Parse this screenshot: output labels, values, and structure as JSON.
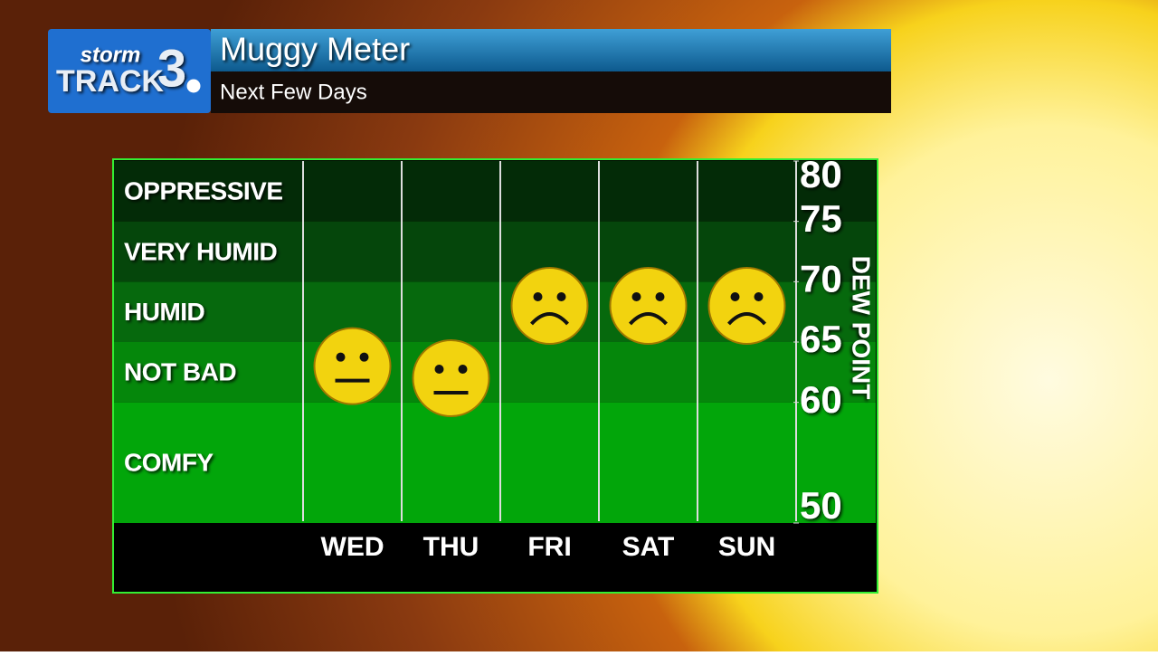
{
  "header": {
    "logo_top": "storm",
    "logo_main": "TRACK",
    "logo_number": "3",
    "title": "Muggy Meter",
    "subtitle": "Next Few Days"
  },
  "chart_data": {
    "type": "face-meter",
    "y_axis_label": "DEW POINT",
    "categories": [
      "WED",
      "THU",
      "FRI",
      "SAT",
      "SUN"
    ],
    "values": [
      63,
      62,
      68,
      68,
      68
    ],
    "faces": [
      "neutral",
      "neutral",
      "sad",
      "sad",
      "sad"
    ],
    "ylim": [
      50,
      80
    ],
    "yticks": [
      50,
      60,
      65,
      70,
      75,
      80
    ],
    "bands": [
      {
        "label": "COMFY",
        "from": 50,
        "to": 60,
        "color": "#02a60a"
      },
      {
        "label": "NOT BAD",
        "from": 60,
        "to": 65,
        "color": "#05870b"
      },
      {
        "label": "HUMID",
        "from": 65,
        "to": 70,
        "color": "#06690d"
      },
      {
        "label": "VERY HUMID",
        "from": 70,
        "to": 75,
        "color": "#05460b"
      },
      {
        "label": "OPPRESSIVE",
        "from": 75,
        "to": 80,
        "color": "#032b07"
      }
    ],
    "face_color": "#f2d30f"
  }
}
